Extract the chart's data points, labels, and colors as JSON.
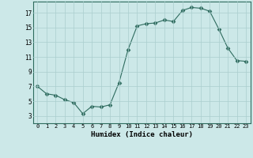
{
  "x": [
    0,
    1,
    2,
    3,
    4,
    5,
    6,
    7,
    8,
    9,
    10,
    11,
    12,
    13,
    14,
    15,
    16,
    17,
    18,
    19,
    20,
    21,
    22,
    23
  ],
  "y": [
    7.0,
    6.0,
    5.8,
    5.2,
    4.8,
    3.3,
    4.3,
    4.2,
    4.5,
    7.5,
    12.0,
    15.2,
    15.5,
    15.6,
    16.0,
    15.8,
    17.3,
    17.7,
    17.6,
    17.2,
    14.8,
    12.2,
    10.5,
    10.4
  ],
  "line_color": "#2e6b5e",
  "marker": "D",
  "marker_size": 2.5,
  "bg_color": "#cce8e8",
  "grid_color": "#aacece",
  "xlabel": "Humidex (Indice chaleur)",
  "xlim": [
    -0.5,
    23.5
  ],
  "ylim": [
    2.0,
    18.5
  ],
  "yticks": [
    3,
    5,
    7,
    9,
    11,
    13,
    15,
    17
  ],
  "xtick_labels": [
    "0",
    "1",
    "2",
    "3",
    "4",
    "5",
    "6",
    "7",
    "8",
    "9",
    "10",
    "11",
    "12",
    "13",
    "14",
    "15",
    "16",
    "17",
    "18",
    "19",
    "20",
    "21",
    "22",
    "23"
  ]
}
